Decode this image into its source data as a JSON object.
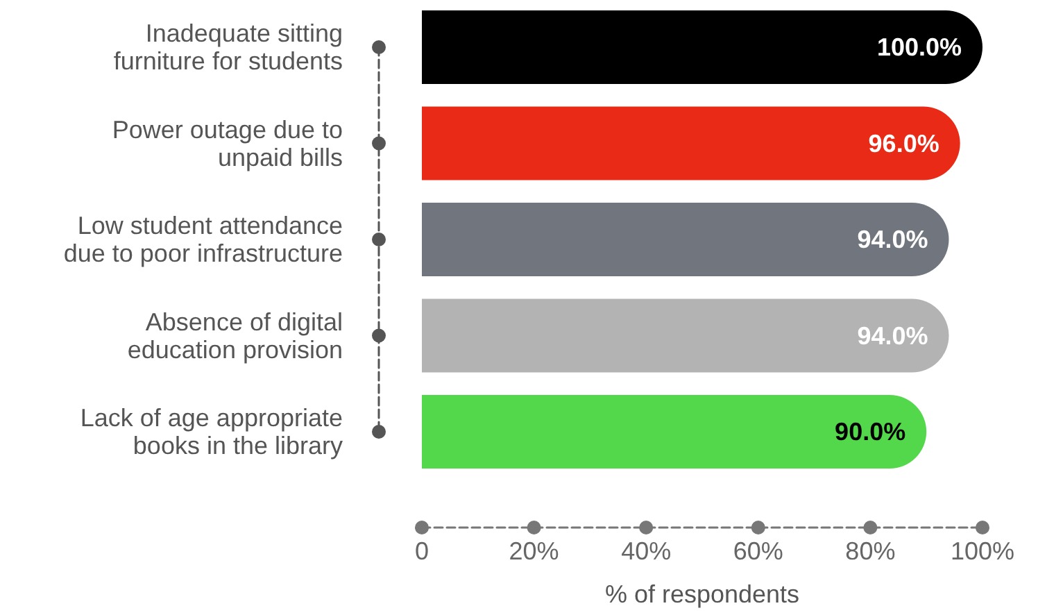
{
  "chart_data": {
    "type": "bar",
    "orientation": "horizontal",
    "categories": [
      "Inadequate sitting\nfurniture for students",
      "Power outage due to\nunpaid bills",
      "Low student attendance\ndue to poor infrastructure",
      "Absence of digital\neducation provision",
      "Lack of age appropriate\nbooks in the library"
    ],
    "values": [
      100,
      96,
      94,
      94,
      90
    ],
    "colors": [
      "#000000",
      "#e92a17",
      "#71767e",
      "#b3b3b3",
      "#52d84a"
    ],
    "value_labels": [
      "100.0%",
      "96.0%",
      "94.0%",
      "94.0%",
      "90.0%"
    ],
    "xlabel": "% of respondents",
    "xlim": [
      0,
      100
    ],
    "xticks": [
      0,
      {
        "value": 20,
        "label": "20%"
      },
      {
        "value": 40,
        "label": "40%"
      },
      {
        "value": 60,
        "label": "60%"
      },
      {
        "value": 80,
        "label": "80%"
      },
      {
        "value": 100,
        "label": "100%"
      }
    ],
    "grid": false
  }
}
